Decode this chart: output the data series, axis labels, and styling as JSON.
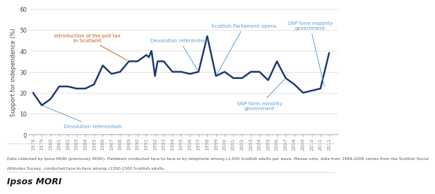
{
  "years": [
    1978,
    1979,
    1980,
    1981,
    1982,
    1983,
    1984,
    1985,
    1986,
    1987,
    1988,
    1989,
    1990,
    1991,
    1991.3,
    1991.6,
    1992,
    1992.3,
    1993,
    1994,
    1995,
    1996,
    1997,
    1998,
    1999,
    2000,
    2001,
    2002,
    2003,
    2004,
    2005,
    2006,
    2007,
    2008,
    2009,
    2010,
    2011,
    2012
  ],
  "values": [
    20,
    14,
    17,
    23,
    23,
    22,
    22,
    24,
    33,
    29,
    30,
    35,
    35,
    38,
    37,
    40,
    28,
    35,
    35,
    30,
    30,
    29,
    30,
    47,
    28,
    30,
    27,
    27,
    30,
    30,
    26,
    35,
    27,
    24,
    20,
    21,
    22,
    39
  ],
  "line_color": "#1b3a6b",
  "line_width": 1.8,
  "ylabel": "Support for independence (%)",
  "ylim": [
    0,
    60
  ],
  "xlim": [
    1977.5,
    2013.0
  ],
  "yticks": [
    0,
    10,
    20,
    30,
    40,
    50,
    60
  ],
  "bg_color": "#ffffff",
  "footer_line1": "Data collected by Ipsos MORI (previously MORI). Fieldwork conducted face-to-face or by telephone among c1,000 Scottish adults per wave. Please note, data from 1999-2008 comes from the Scottish Social",
  "footer_line2": "Attitudes Survey, conducted face-to-face among c1200-1500 Scottish adults.",
  "ipsos_label": "Ipsos MORI",
  "ann_color_blue": "#5b9bd5",
  "ann_color_orange": "#c55a11"
}
